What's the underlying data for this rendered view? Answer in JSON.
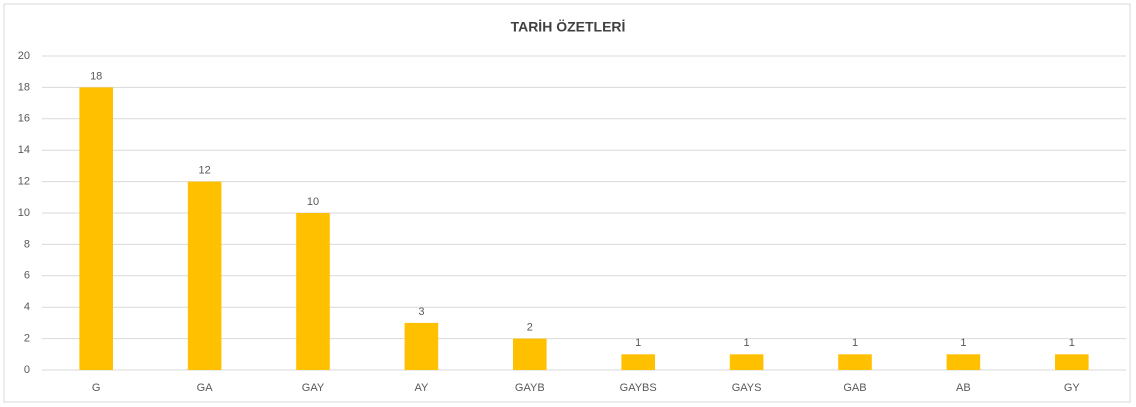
{
  "chart_data": {
    "type": "bar",
    "title": "TARİH ÖZETLERİ",
    "categories": [
      "G",
      "GA",
      "GAY",
      "AY",
      "GAYB",
      "GAYBS",
      "GAYS",
      "GAB",
      "AB",
      "GY"
    ],
    "values": [
      18,
      12,
      10,
      3,
      2,
      1,
      1,
      1,
      1,
      1
    ],
    "color": "#ffc000",
    "ylim": [
      0,
      20
    ],
    "yticks": [
      0,
      2,
      4,
      6,
      8,
      10,
      12,
      14,
      16,
      18,
      20
    ],
    "grid": true,
    "data_labels": true
  }
}
